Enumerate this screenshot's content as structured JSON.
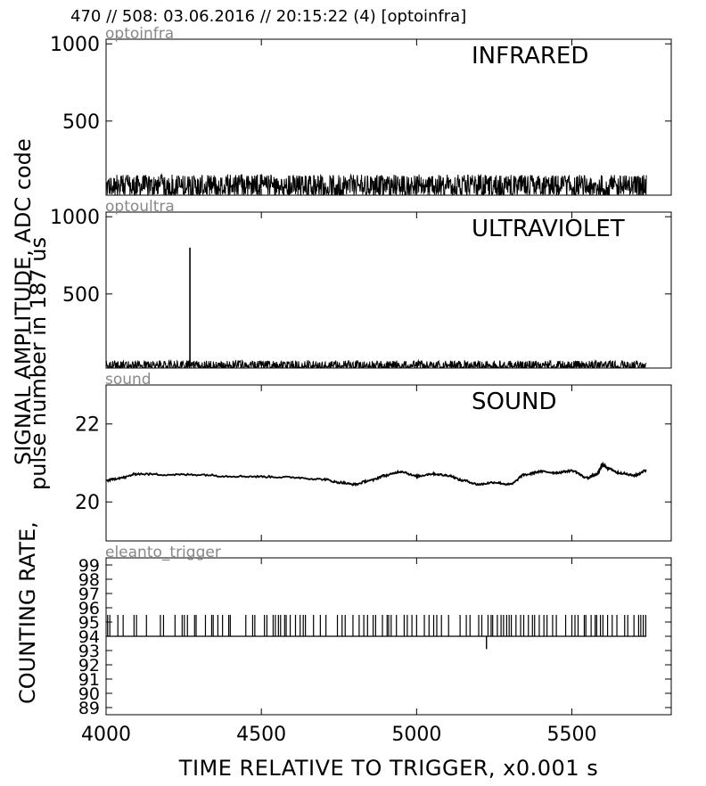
{
  "header": "470 // 508:   03.06.2016 // 20:15:22 (4)  [optoinfra]",
  "ylabels": {
    "line1": "SIGNAL AMPLITUDE,  ADC code",
    "line2": "pulse number in 187 us",
    "line3": "COUNTING RATE,"
  },
  "colors": {
    "trace": "#000000",
    "panel_tag": "#888888",
    "frame": "#000000"
  },
  "chart_data": {
    "type": "line",
    "x_range": [
      4000,
      5820
    ],
    "xlabel": "TIME RELATIVE TO TRIGGER,   x0.001 s",
    "xticks": [
      4000,
      4500,
      5000,
      5500
    ],
    "grid": false,
    "panels": [
      {
        "tag": "optoinfra",
        "title": "INFRARED",
        "ylim": [
          20,
          1030
        ],
        "yticks": [
          500,
          1000
        ],
        "signal": {
          "kind": "noise",
          "x_start": 4000,
          "x_end": 5740,
          "baseline": 75,
          "band_low": 20,
          "band_high": 155
        }
      },
      {
        "tag": "optoultra",
        "title": "ULTRAVIOLET",
        "ylim": [
          20,
          1030
        ],
        "yticks": [
          500,
          1000
        ],
        "signal": {
          "kind": "noise",
          "x_start": 4000,
          "x_end": 5740,
          "baseline": 32,
          "band_low": 20,
          "band_high": 70
        },
        "spike": {
          "x": 4270,
          "y": 800
        }
      },
      {
        "tag": "sound",
        "title": "SOUND",
        "ylim": [
          19.0,
          23.0
        ],
        "yticks": [
          20,
          22
        ],
        "x": [
          4000,
          4050,
          4100,
          4200,
          4300,
          4400,
          4500,
          4600,
          4700,
          4750,
          4800,
          4850,
          4900,
          4950,
          5000,
          5050,
          5100,
          5150,
          5200,
          5250,
          5300,
          5350,
          5400,
          5450,
          5500,
          5550,
          5580,
          5600,
          5620,
          5650,
          5700,
          5740
        ],
        "y": [
          20.55,
          20.62,
          20.72,
          20.7,
          20.7,
          20.66,
          20.65,
          20.63,
          20.58,
          20.5,
          20.45,
          20.55,
          20.68,
          20.78,
          20.66,
          20.72,
          20.68,
          20.55,
          20.45,
          20.5,
          20.45,
          20.7,
          20.78,
          20.75,
          20.8,
          20.62,
          20.7,
          20.95,
          20.85,
          20.75,
          20.68,
          20.8
        ]
      },
      {
        "tag": "eleanto_trigger",
        "title": "",
        "ylim": [
          88.5,
          99.5
        ],
        "yticks": [
          89,
          90,
          91,
          92,
          93,
          94,
          95,
          96,
          97,
          98,
          99
        ],
        "baseline": 94,
        "spike_top": 95.5,
        "spike_x": [
          4005,
          4012,
          4038,
          4055,
          4090,
          4098,
          4130,
          4175,
          4185,
          4222,
          4245,
          4252,
          4262,
          4285,
          4290,
          4320,
          4340,
          4345,
          4360,
          4375,
          4395,
          4400,
          4450,
          4472,
          4479,
          4510,
          4518,
          4538,
          4545,
          4555,
          4562,
          4575,
          4580,
          4593,
          4610,
          4625,
          4635,
          4642,
          4668,
          4690,
          4708,
          4745,
          4760,
          4770,
          4795,
          4815,
          4830,
          4842,
          4860,
          4868,
          4890,
          4905,
          4910,
          4918,
          4935,
          4960,
          4970,
          4985,
          5000,
          5025,
          5040,
          5055,
          5065,
          5080,
          5103,
          5140,
          5160,
          5172,
          5200,
          5210,
          5230,
          5240,
          5245,
          5260,
          5272,
          5280,
          5290,
          5298,
          5305,
          5320,
          5335,
          5345,
          5360,
          5373,
          5380,
          5395,
          5410,
          5420,
          5438,
          5450,
          5480,
          5500,
          5510,
          5520,
          5540,
          5545,
          5562,
          5575,
          5580,
          5592,
          5600,
          5615,
          5630,
          5645,
          5670,
          5680,
          5700,
          5715,
          5722,
          5730,
          5738
        ],
        "dip": {
          "x": 5225,
          "y": 93.1
        }
      }
    ]
  }
}
